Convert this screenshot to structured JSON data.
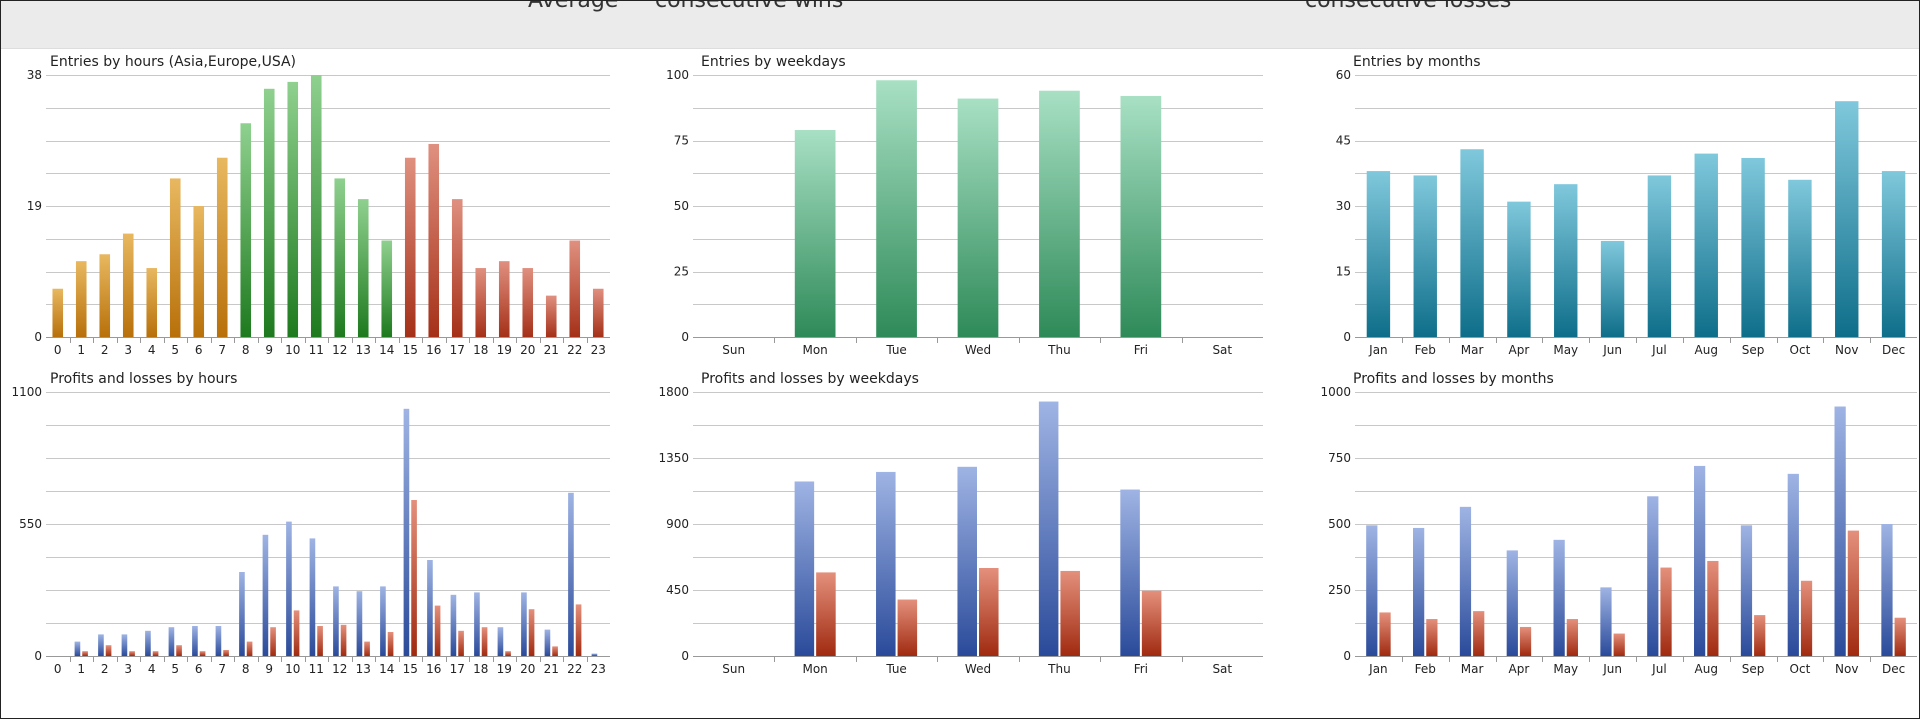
{
  "header": {
    "fragments": [
      "Average",
      "consecutive wins",
      "consecutive losses"
    ]
  },
  "colors": {
    "hour_asia": [
      "#e8b860",
      "#b8700a"
    ],
    "hour_europe": [
      "#8fd08f",
      "#1e7a1e"
    ],
    "hour_usa": [
      "#e09080",
      "#a53018"
    ],
    "weekday_entries": [
      "#a8e0c4",
      "#2e8a58"
    ],
    "month_entries": [
      "#80c8dc",
      "#0e6e8a"
    ],
    "profit": [
      "#9fb4e4",
      "#2a4a9a"
    ],
    "loss": [
      "#e4907c",
      "#a02a10"
    ]
  },
  "chart_data": [
    {
      "type": "bar",
      "title": "Entries by hours (Asia,Europe,USA)",
      "categories": [
        "0",
        "1",
        "2",
        "3",
        "4",
        "5",
        "6",
        "7",
        "8",
        "9",
        "10",
        "11",
        "12",
        "13",
        "14",
        "15",
        "16",
        "17",
        "18",
        "19",
        "20",
        "21",
        "22",
        "23"
      ],
      "values": [
        7,
        11,
        12,
        15,
        10,
        23,
        19,
        26,
        31,
        36,
        37,
        38,
        23,
        20,
        14,
        26,
        28,
        20,
        10,
        11,
        10,
        6,
        14,
        7
      ],
      "ylim": [
        0,
        38
      ],
      "yticks": [
        0,
        19,
        38
      ]
    },
    {
      "type": "bar",
      "title": "Entries by weekdays",
      "categories": [
        "Sun",
        "Mon",
        "Tue",
        "Wed",
        "Thu",
        "Fri",
        "Sat"
      ],
      "values": [
        0,
        79,
        98,
        91,
        94,
        92,
        0
      ],
      "ylim": [
        0,
        100
      ],
      "yticks": [
        0,
        25,
        50,
        75,
        100
      ]
    },
    {
      "type": "bar",
      "title": "Entries by months",
      "categories": [
        "Jan",
        "Feb",
        "Mar",
        "Apr",
        "May",
        "Jun",
        "Jul",
        "Aug",
        "Sep",
        "Oct",
        "Nov",
        "Dec"
      ],
      "values": [
        38,
        37,
        43,
        31,
        35,
        22,
        37,
        42,
        41,
        36,
        54,
        38
      ],
      "ylim": [
        0,
        60
      ],
      "yticks": [
        0,
        15,
        30,
        45,
        60
      ]
    },
    {
      "type": "bar",
      "title": "Profits and losses by hours",
      "categories": [
        "0",
        "1",
        "2",
        "3",
        "4",
        "5",
        "6",
        "7",
        "8",
        "9",
        "10",
        "11",
        "12",
        "13",
        "14",
        "15",
        "16",
        "17",
        "18",
        "19",
        "20",
        "21",
        "22",
        "23"
      ],
      "series": [
        {
          "values": [
            0,
            60,
            90,
            90,
            105,
            120,
            125,
            125,
            350,
            505,
            560,
            490,
            290,
            270,
            290,
            1030,
            400,
            255,
            265,
            120,
            265,
            110,
            680,
            10
          ]
        },
        {
          "values": [
            0,
            20,
            45,
            20,
            20,
            45,
            20,
            25,
            60,
            120,
            190,
            125,
            130,
            60,
            100,
            650,
            210,
            105,
            120,
            20,
            195,
            40,
            215,
            0
          ]
        }
      ],
      "ylim": [
        0,
        1100
      ],
      "yticks": [
        0,
        550,
        1100
      ]
    },
    {
      "type": "bar",
      "title": "Profits and losses by weekdays",
      "categories": [
        "Sun",
        "Mon",
        "Tue",
        "Wed",
        "Thu",
        "Fri",
        "Sat"
      ],
      "series": [
        {
          "values": [
            0,
            1190,
            1255,
            1290,
            1735,
            1135,
            0
          ]
        },
        {
          "values": [
            0,
            570,
            385,
            600,
            580,
            445,
            0
          ]
        }
      ],
      "ylim": [
        0,
        1800
      ],
      "yticks": [
        0,
        450,
        900,
        1350,
        1800
      ]
    },
    {
      "type": "bar",
      "title": "Profits and losses by months",
      "categories": [
        "Jan",
        "Feb",
        "Mar",
        "Apr",
        "May",
        "Jun",
        "Jul",
        "Aug",
        "Sep",
        "Oct",
        "Nov",
        "Dec"
      ],
      "series": [
        {
          "values": [
            495,
            485,
            565,
            400,
            440,
            260,
            605,
            720,
            495,
            690,
            945,
            500
          ]
        },
        {
          "values": [
            165,
            140,
            170,
            110,
            140,
            85,
            335,
            360,
            155,
            285,
            475,
            145
          ]
        }
      ],
      "ylim": [
        0,
        1000
      ],
      "yticks": [
        0,
        250,
        500,
        750,
        1000
      ]
    }
  ]
}
